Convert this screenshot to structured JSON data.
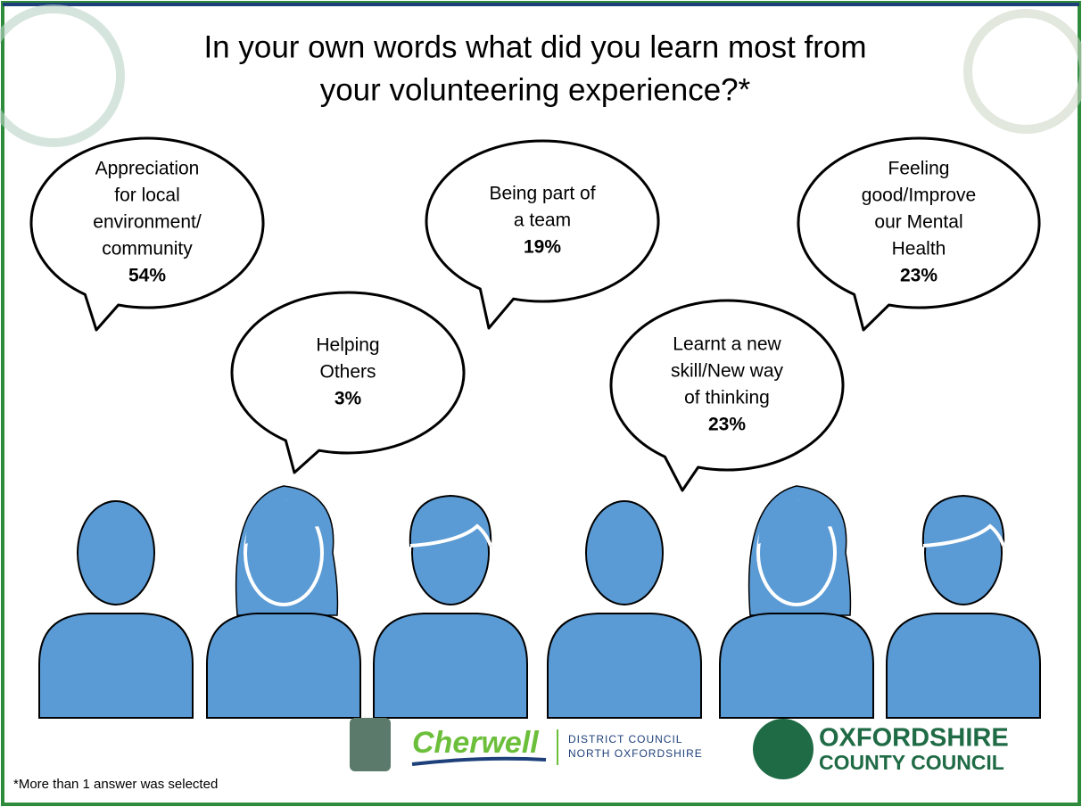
{
  "title": [
    "In your own words what did you learn most from",
    "your volunteering experience?*"
  ],
  "bubbles": [
    {
      "lines": [
        "Appreciation",
        "for local",
        "environment/",
        "community"
      ],
      "percent": "54%"
    },
    {
      "lines": [
        "Helping",
        "Others"
      ],
      "percent": "3%"
    },
    {
      "lines": [
        "Being part of",
        "a team"
      ],
      "percent": "19%"
    },
    {
      "lines": [
        "Learnt a new",
        "skill/New way",
        "of thinking"
      ],
      "percent": "23%"
    },
    {
      "lines": [
        "Feeling",
        "good/Improve",
        "our Mental",
        "Health"
      ],
      "percent": "23%"
    }
  ],
  "footnote": "*More than 1 answer was selected",
  "logos": {
    "cherwell": "Cherwell",
    "cherwell_sub": [
      "DISTRICT COUNCIL",
      "NORTH OXFORDSHIRE"
    ],
    "oxfordshire": [
      "OXFORDSHIRE",
      "COUNTY COUNCIL"
    ]
  }
}
